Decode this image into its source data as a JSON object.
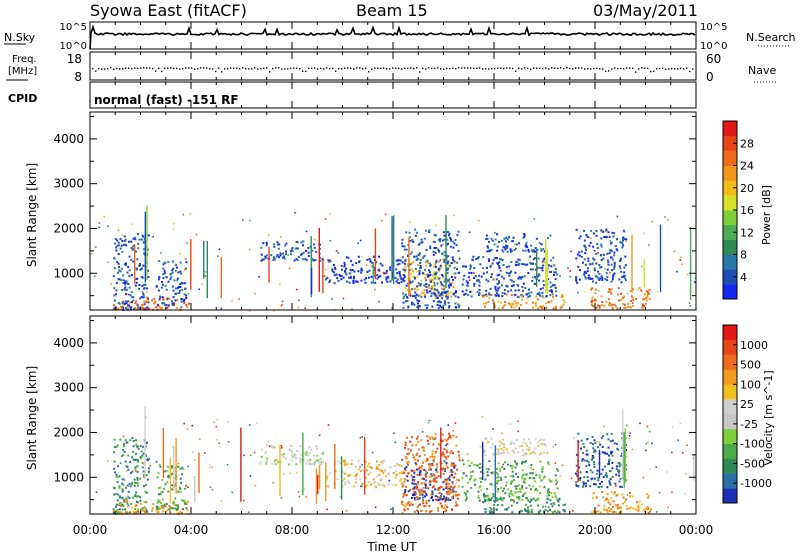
{
  "header": {
    "station": "Syowa East (fitACF)",
    "beam": "Beam 15",
    "date": "03/May/2011"
  },
  "noise_panel": {
    "left_label": "N.Sky",
    "right_label": "N.Search",
    "left_ticks": [
      "10^5",
      "10^0"
    ],
    "right_ticks": [
      "10^5",
      "10^0"
    ]
  },
  "freq_panel": {
    "left_label_1": "Freq.",
    "left_label_2": "[MHz]",
    "right_label": "Nave",
    "left_ticks": [
      "18",
      "8"
    ],
    "right_ticks": [
      "60",
      "0"
    ]
  },
  "cpid_panel": {
    "left_label": "CPID",
    "text": "normal (fast) -151 RF"
  },
  "x_axis": {
    "label": "Time UT",
    "ticks": [
      "00:00",
      "04:00",
      "08:00",
      "12:00",
      "16:00",
      "20:00",
      "00:00"
    ]
  },
  "chart_data": [
    {
      "type": "heatmap",
      "title": "Power",
      "xlabel": "Time UT",
      "ylabel": "Slant Range [km]",
      "x_range_hours": [
        0,
        24
      ],
      "ylim_km": [
        180,
        4600
      ],
      "yticks": [
        "1000",
        "2000",
        "3000",
        "4000"
      ],
      "colorbar": {
        "label": "Power [dB]",
        "ticks": [
          "4",
          "8",
          "12",
          "16",
          "20",
          "24",
          "28"
        ],
        "colors": [
          "#1428f0",
          "#1f4fb5",
          "#2a78a8",
          "#2e8b57",
          "#4daa55",
          "#7fcf3a",
          "#d7e02a",
          "#f2bc1c",
          "#f3961e",
          "#f06a1c",
          "#e8441a",
          "#e01818"
        ]
      },
      "clusters": [
        {
          "t0": 0.9,
          "t1": 2.3,
          "r0": 200,
          "r1": 1900,
          "c": 1
        },
        {
          "t0": 0.9,
          "t1": 3.9,
          "r0": 200,
          "r1": 500,
          "c": 9
        },
        {
          "t0": 2.6,
          "t1": 3.8,
          "r0": 300,
          "r1": 1300,
          "c": 1
        },
        {
          "t0": 6.7,
          "t1": 9.2,
          "r0": 1300,
          "r1": 1750,
          "c": 1
        },
        {
          "t0": 9.3,
          "t1": 12.4,
          "r0": 800,
          "r1": 1400,
          "c": 0
        },
        {
          "t0": 12.4,
          "t1": 14.4,
          "r0": 500,
          "r1": 1400,
          "c": 7
        },
        {
          "t0": 12.3,
          "t1": 14.6,
          "r0": 250,
          "r1": 2000,
          "c": 1
        },
        {
          "t0": 15.4,
          "t1": 18.2,
          "r0": 1500,
          "r1": 1900,
          "c": 1
        },
        {
          "t0": 14.7,
          "t1": 18.5,
          "r0": 500,
          "r1": 1400,
          "c": 1
        },
        {
          "t0": 15.5,
          "t1": 18.8,
          "r0": 230,
          "r1": 550,
          "c": 8
        },
        {
          "t0": 19.2,
          "t1": 21.2,
          "r0": 800,
          "r1": 2000,
          "c": 1
        },
        {
          "t0": 19.8,
          "t1": 22.2,
          "r0": 230,
          "r1": 700,
          "c": 9
        }
      ]
    },
    {
      "type": "heatmap",
      "title": "Velocity",
      "xlabel": "Time UT",
      "ylabel": "Slant Range [km]",
      "x_range_hours": [
        0,
        24
      ],
      "ylim_km": [
        180,
        4600
      ],
      "yticks": [
        "1000",
        "2000",
        "3000",
        "4000"
      ],
      "colorbar": {
        "label": "Velocity [m s^-1]",
        "ticks": [
          "1000",
          "500",
          "100",
          "25",
          "-25",
          "-100",
          "-500",
          "-1000"
        ],
        "colors": [
          "#1e2fb4",
          "#2a6fa6",
          "#2e8b57",
          "#4caa48",
          "#7fcf3a",
          "#c8c8c8",
          "#d0d0d0",
          "#f0c020",
          "#f39a1e",
          "#f06c1c",
          "#e84618",
          "#e01818"
        ]
      },
      "clusters": [
        {
          "t0": 0.9,
          "t1": 2.3,
          "r0": 200,
          "r1": 1900,
          "c": 2
        },
        {
          "t0": 0.9,
          "t1": 3.9,
          "r0": 200,
          "r1": 500,
          "c": 8
        },
        {
          "t0": 2.6,
          "t1": 3.8,
          "r0": 300,
          "r1": 1300,
          "c": 3
        },
        {
          "t0": 6.7,
          "t1": 9.2,
          "r0": 1300,
          "r1": 1750,
          "c": 5
        },
        {
          "t0": 9.3,
          "t1": 12.4,
          "r0": 800,
          "r1": 1400,
          "c": 7
        },
        {
          "t0": 12.4,
          "t1": 14.4,
          "r0": 500,
          "r1": 1400,
          "c": 0
        },
        {
          "t0": 12.3,
          "t1": 14.6,
          "r0": 250,
          "r1": 2000,
          "c": 9
        },
        {
          "t0": 15.4,
          "t1": 18.2,
          "r0": 1500,
          "r1": 1900,
          "c": 6
        },
        {
          "t0": 14.7,
          "t1": 18.5,
          "r0": 500,
          "r1": 1400,
          "c": 3
        },
        {
          "t0": 15.5,
          "t1": 18.8,
          "r0": 230,
          "r1": 550,
          "c": 2
        },
        {
          "t0": 19.2,
          "t1": 21.2,
          "r0": 800,
          "r1": 2000,
          "c": 1
        },
        {
          "t0": 19.8,
          "t1": 22.2,
          "r0": 230,
          "r1": 700,
          "c": 8
        }
      ]
    }
  ]
}
